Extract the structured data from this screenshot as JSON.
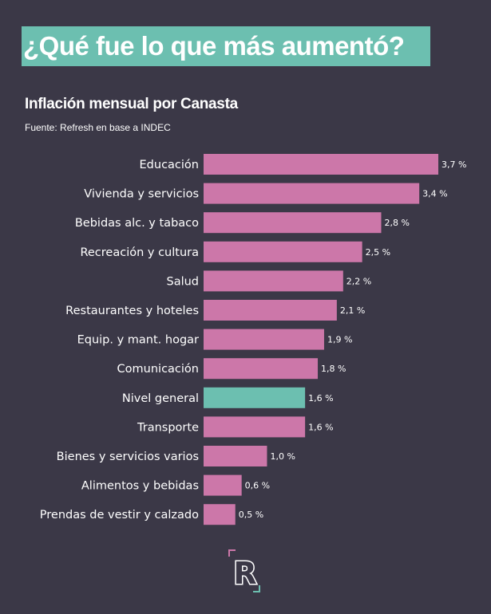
{
  "headline": "¿Qué fue lo que más aumentó?",
  "colors": {
    "background": "#3b3847",
    "accent": "#6cbfb0",
    "bar": "#cc77a9",
    "highlight_bar": "#6cbfb0",
    "text": "#ffffff"
  },
  "logo": {
    "letter": "R"
  },
  "chart_data": {
    "type": "bar",
    "orientation": "horizontal",
    "title": "Inflación mensual por Canasta",
    "subtitle": "Fuente: Refresh en base a INDEC",
    "categories": [
      "Educación",
      "Vivienda y servicios",
      "Bebidas alc. y tabaco",
      "Recreación y cultura",
      "Salud",
      "Restaurantes y hoteles",
      "Equip. y mant. hogar",
      "Comunicación",
      "Nivel general",
      "Transporte",
      "Bienes y servicios varios",
      "Alimentos y bebidas",
      "Prendas de vestir y calzado"
    ],
    "values": [
      3.7,
      3.4,
      2.8,
      2.5,
      2.2,
      2.1,
      1.9,
      1.8,
      1.6,
      1.6,
      1.0,
      0.6,
      0.5
    ],
    "value_labels": [
      "3,7 %",
      "3,4 %",
      "2,8 %",
      "2,5 %",
      "2,2 %",
      "2,1 %",
      "1,9 %",
      "1,8 %",
      "1,6 %",
      "1,6 %",
      "1,0 %",
      "0,6 %",
      "0,5 %"
    ],
    "highlight": "Nivel general",
    "xlim": [
      0,
      3.7
    ],
    "grid": false,
    "legend": "none"
  }
}
